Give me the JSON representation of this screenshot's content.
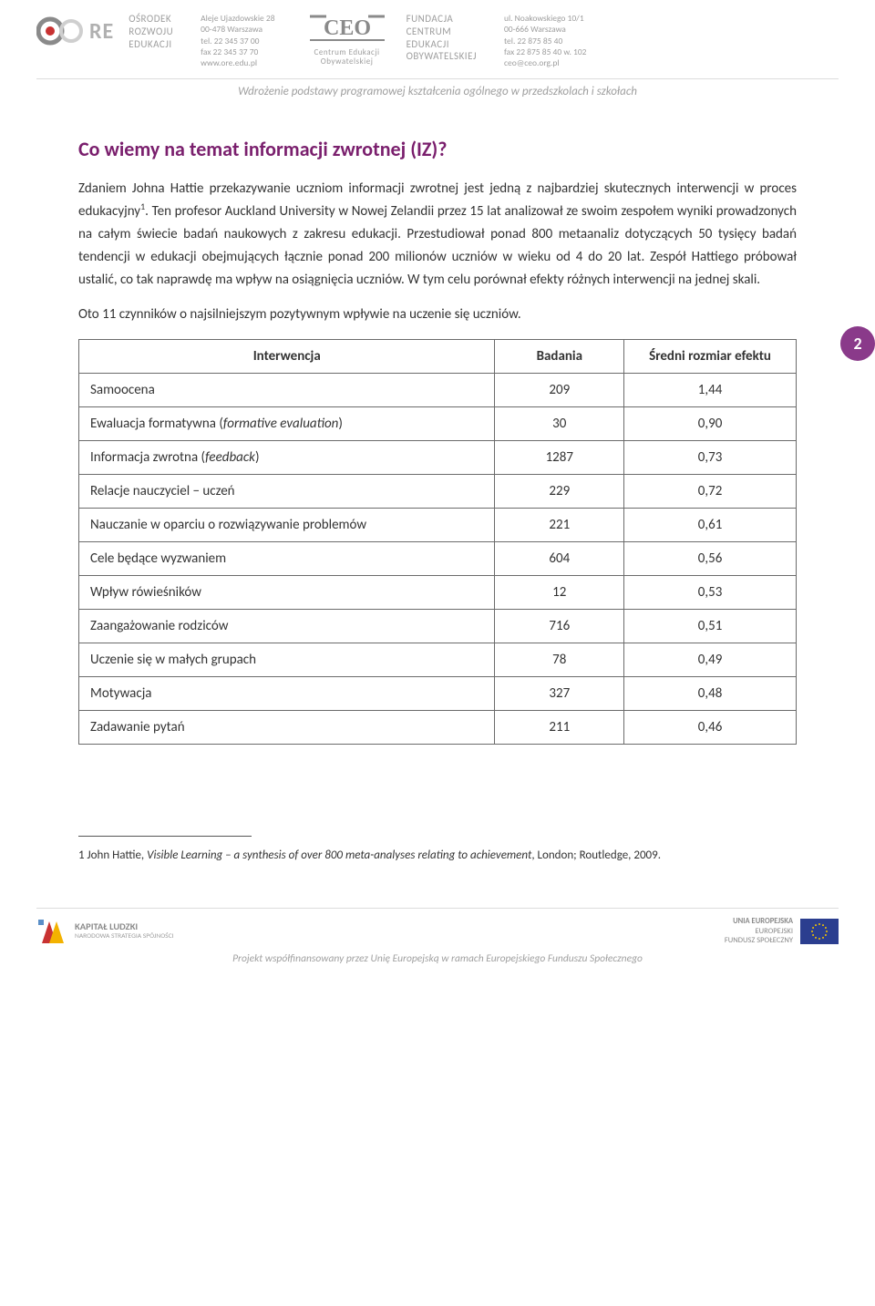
{
  "header": {
    "org1": {
      "l1": "Ośrodek",
      "l2": "Rozwoju",
      "l3": "Edukacji"
    },
    "addr1": {
      "l1": "Aleje Ujazdowskie 28",
      "l2": "00-478 Warszawa",
      "l3": "tel. 22 345 37 00",
      "l4": "fax 22 345 37 70",
      "l5": "www.ore.edu.pl"
    },
    "ceo_sub1": "Centrum Edukacji",
    "ceo_sub2": "Obywatelskiej",
    "org2": {
      "l1": "Fundacja",
      "l2": "Centrum",
      "l3": "Edukacji",
      "l4": "Obywatelskiej"
    },
    "addr2": {
      "l1": "ul. Noakowskiego 10/1",
      "l2": "00-666 Warszawa",
      "l3": "tel. 22 875 85 40",
      "l4": "fax 22 875 85 40 w. 102",
      "l5": "ceo@ceo.org.pl"
    },
    "tagline": "Wdrożenie podstawy programowej kształcenia ogólnego w przedszkolach i szkołach"
  },
  "title": {
    "text": "Co wiemy na temat informacji zwrotnej (IZ)?",
    "color": "#7a1f6d"
  },
  "para1_a": "Zdaniem Johna Hattie przekazywanie uczniom informacji zwrotnej jest jedną z najbardziej skutecznych interwencji w proces edukacyjny",
  "para1_sup": "1",
  "para1_b": ". Ten profesor Auckland University w Nowej Zelandii przez 15 lat analizował ze swoim zespołem wyniki prowadzonych na całym świecie badań naukowych z zakresu edukacji. Przestudiował ponad 800 metaanaliz dotyczących 50 tysięcy badań tendencji w edukacji obejmujących łącznie ponad 200 milionów uczniów w wieku od 4 do 20 lat. Zespół Hattiego próbował ustalić, co tak naprawdę ma wpływ na osiągnięcia uczniów. W tym celu porównał efekty różnych interwencji na jednej skali.",
  "para2": "Oto 11 czynników o najsilniejszym pozytywnym wpływie na uczenie się uczniów.",
  "page_badge": {
    "number": "2",
    "bg": "#8a3a8a"
  },
  "table": {
    "columns": [
      "Interwencja",
      "Badania",
      "Średni rozmiar efektu"
    ],
    "rows": [
      {
        "name": "Samoocena",
        "italic": "",
        "badania": "209",
        "efekt": "1,44"
      },
      {
        "name": "Ewaluacja formatywna (",
        "italic": "formative evaluation",
        "suffix": ")",
        "badania": "30",
        "efekt": "0,90"
      },
      {
        "name": "Informacja zwrotna (",
        "italic": "feedback",
        "suffix": ")",
        "badania": "1287",
        "efekt": "0,73"
      },
      {
        "name": "Relacje nauczyciel − uczeń",
        "italic": "",
        "badania": "229",
        "efekt": "0,72"
      },
      {
        "name": "Nauczanie w oparciu o rozwiązywanie problemów",
        "italic": "",
        "badania": "221",
        "efekt": "0,61"
      },
      {
        "name": "Cele będące wyzwaniem",
        "italic": "",
        "badania": "604",
        "efekt": "0,56"
      },
      {
        "name": "Wpływ rówieśników",
        "italic": "",
        "badania": "12",
        "efekt": "0,53"
      },
      {
        "name": "Zaangażowanie rodziców",
        "italic": "",
        "badania": "716",
        "efekt": "0,51"
      },
      {
        "name": "Uczenie się w małych grupach",
        "italic": "",
        "badania": "78",
        "efekt": "0,49"
      },
      {
        "name": "Motywacja",
        "italic": "",
        "badania": "327",
        "efekt": "0,48"
      },
      {
        "name": "Zadawanie pytań",
        "italic": "",
        "badania": "211",
        "efekt": "0,46"
      }
    ]
  },
  "footnote": {
    "marker": "1",
    "pre": " John Hattie, ",
    "title_italic": "Visible Learning – a synthesis of over 800 meta-analyses relating to achievement",
    "post": ", London; Routledge, 2009."
  },
  "footer": {
    "kl_l1": "KAPITAŁ LUDZKI",
    "kl_l2": "NARODOWA STRATEGIA SPÓJNOŚCI",
    "eu_l1": "UNIA EUROPEJSKA",
    "eu_l2": "EUROPEJSKI",
    "eu_l3": "FUNDUSZ SPOŁECZNY",
    "tagline": "Projekt współfinansowany przez Unię Europejską w ramach Europejskiego Funduszu Społecznego",
    "eu_flag": {
      "bg": "#2b3e8f",
      "star": "#f3c400"
    }
  }
}
